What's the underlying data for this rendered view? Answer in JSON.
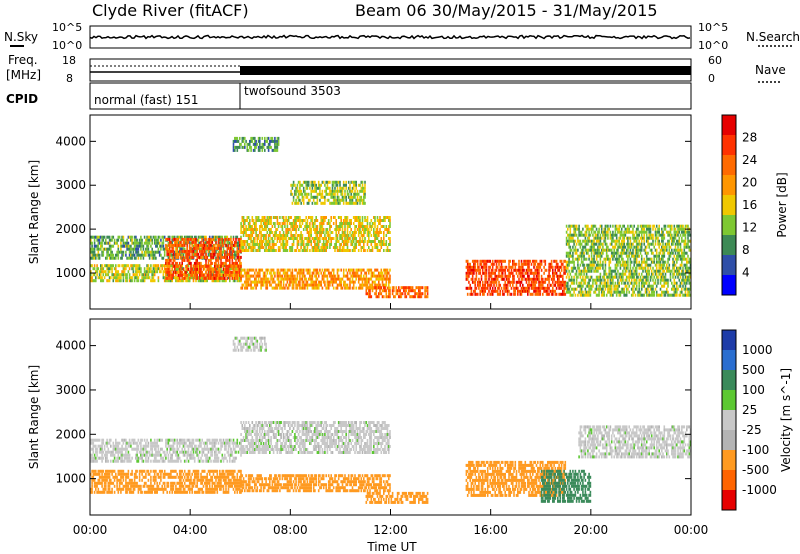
{
  "header": {
    "station": "Clyde River (fitACF)",
    "beam_date": "Beam 06 30/May/2015 - 31/May/2015"
  },
  "nsky_panel": {
    "label": "N.Sky",
    "left_ticks": [
      "10^5",
      "10^0"
    ],
    "right_ticks": [
      "10^5",
      "10^0"
    ],
    "right_label": "N.Search"
  },
  "freq_panel": {
    "label_top": "Freq.",
    "label_unit": "[MHz]",
    "left_ticks": [
      "18",
      "8"
    ],
    "right_ticks": [
      "60",
      "0"
    ],
    "right_label": "Nave"
  },
  "cpid_panel": {
    "label": "CPID",
    "modes": [
      "normal (fast) 151",
      "twofsound 3503"
    ]
  },
  "colors": {
    "power_scale": [
      "#0000ff",
      "#2f4fa8",
      "#3d8a55",
      "#7ec832",
      "#f0c800",
      "#ff9600",
      "#ff6a00",
      "#ff3200",
      "#e60000"
    ],
    "velocity_scale": [
      "#1e3ca8",
      "#2a6ed0",
      "#3a8a5a",
      "#5cc832",
      "#c8c8c8",
      "#b4b4b4",
      "#ff9a20",
      "#ff6400",
      "#e60000"
    ]
  },
  "chart_data": [
    {
      "type": "heatmap",
      "title": "",
      "ylabel": "Slant Range [km]",
      "xlabel": "",
      "x_range_hours": [
        0,
        24
      ],
      "ylim": [
        180,
        4600
      ],
      "yticks": [
        "1000",
        "2000",
        "3000",
        "4000"
      ],
      "colorbar_label": "Power [dB]",
      "colorbar_ticks": [
        "4",
        "8",
        "12",
        "16",
        "20",
        "24",
        "28"
      ],
      "clim": [
        0,
        32
      ],
      "bands": [
        {
          "t0": 0,
          "t1": 6,
          "r0": 1350,
          "r1": 1850,
          "value": 10
        },
        {
          "t0": 0,
          "t1": 6,
          "r0": 800,
          "r1": 1200,
          "value": 14
        },
        {
          "t0": 3,
          "t1": 6,
          "r0": 900,
          "r1": 1800,
          "value": 26
        },
        {
          "t0": 5.7,
          "t1": 7.5,
          "r0": 3800,
          "r1": 4100,
          "value": 9
        },
        {
          "t0": 6,
          "t1": 12,
          "r0": 1500,
          "r1": 2300,
          "value": 16
        },
        {
          "t0": 6,
          "t1": 12,
          "r0": 650,
          "r1": 1100,
          "value": 20
        },
        {
          "t0": 8,
          "t1": 11,
          "r0": 2600,
          "r1": 3100,
          "value": 13
        },
        {
          "t0": 11,
          "t1": 13.5,
          "r0": 450,
          "r1": 700,
          "value": 24
        },
        {
          "t0": 15,
          "t1": 19,
          "r0": 500,
          "r1": 1300,
          "value": 27
        },
        {
          "t0": 19,
          "t1": 24,
          "r0": 500,
          "r1": 2100,
          "value": 12
        }
      ]
    },
    {
      "type": "heatmap",
      "title": "",
      "ylabel": "Slant Range [km]",
      "xlabel": "Time UT",
      "x_range_hours": [
        0,
        24
      ],
      "xticks": [
        "00:00",
        "04:00",
        "08:00",
        "12:00",
        "16:00",
        "20:00",
        "00:00"
      ],
      "ylim": [
        180,
        4600
      ],
      "yticks": [
        "1000",
        "2000",
        "3000",
        "4000"
      ],
      "colorbar_label": "Velocity [m s^-1]",
      "colorbar_ticks": [
        "1000",
        "500",
        "100",
        "25",
        "-25",
        "-100",
        "-500",
        "-1000"
      ],
      "bands": [
        {
          "t0": 0,
          "t1": 6,
          "r0": 1400,
          "r1": 1900,
          "value": 0
        },
        {
          "t0": 0,
          "t1": 6,
          "r0": 700,
          "r1": 1200,
          "value": -150
        },
        {
          "t0": 5.7,
          "t1": 7,
          "r0": 3900,
          "r1": 4200,
          "value": 0
        },
        {
          "t0": 6,
          "t1": 12,
          "r0": 1600,
          "r1": 2300,
          "value": 0
        },
        {
          "t0": 6,
          "t1": 12,
          "r0": 700,
          "r1": 1100,
          "value": -200
        },
        {
          "t0": 11,
          "t1": 13.5,
          "r0": 450,
          "r1": 700,
          "value": -150
        },
        {
          "t0": 15,
          "t1": 19,
          "r0": 600,
          "r1": 1400,
          "value": -300
        },
        {
          "t0": 18,
          "t1": 20,
          "r0": 500,
          "r1": 1200,
          "value": 300
        },
        {
          "t0": 19.5,
          "t1": 24,
          "r0": 1500,
          "r1": 2200,
          "value": 0
        }
      ]
    }
  ]
}
